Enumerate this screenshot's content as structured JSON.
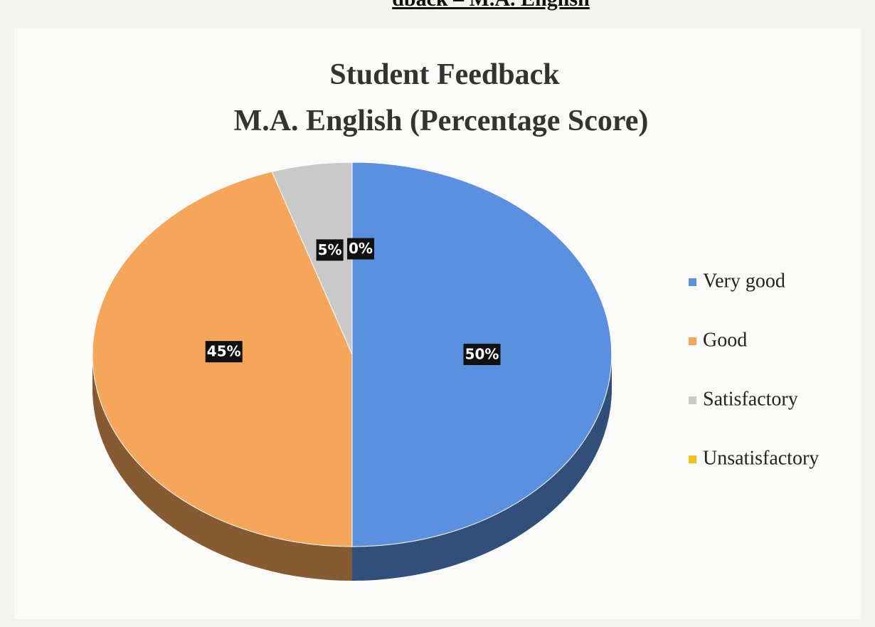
{
  "header": "dback – M.A. English",
  "chart_data": {
    "type": "pie",
    "title": [
      "Student Feedback",
      "M.A. English (Percentage Score)"
    ],
    "categories": [
      "Very good",
      "Good",
      "Satisfactory",
      "Unsatisfactory"
    ],
    "values": [
      50,
      45,
      5,
      0
    ],
    "value_labels": [
      "50%",
      "45%",
      "5%",
      "0%"
    ],
    "colors": [
      "#5b8fe0",
      "#f5a65a",
      "#c9c9c9",
      "#f2c21a"
    ],
    "legend": "right"
  }
}
